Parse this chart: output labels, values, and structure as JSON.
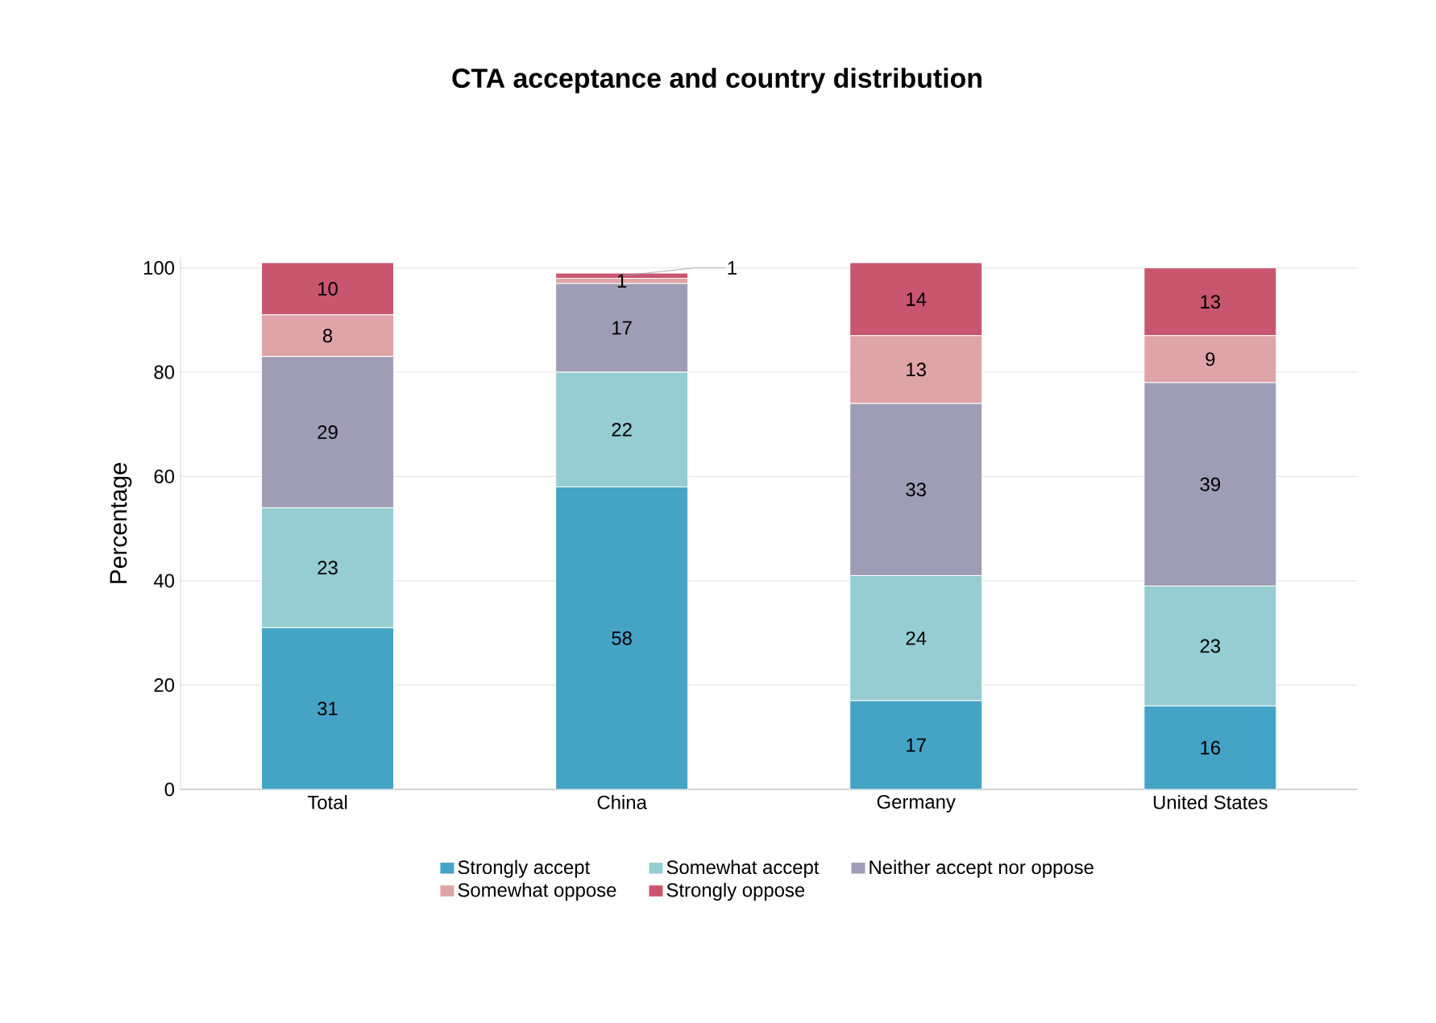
{
  "chart_data": {
    "type": "bar",
    "stacked": true,
    "title": "CTA acceptance and country distribution",
    "ylabel": "Percentage",
    "categories": [
      "Total",
      "China",
      "Germany",
      "United States"
    ],
    "series": [
      {
        "name": "Strongly accept",
        "color": "#45a3c6",
        "values": [
          31,
          58,
          17,
          16
        ]
      },
      {
        "name": "Somewhat accept",
        "color": "#95cdd2",
        "values": [
          23,
          22,
          24,
          23
        ]
      },
      {
        "name": "Neither accept nor oppose",
        "color": "#9e9db5",
        "values": [
          29,
          17,
          33,
          39
        ]
      },
      {
        "name": "Somewhat oppose",
        "color": "#dfa4a7",
        "values": [
          8,
          1,
          13,
          9
        ]
      },
      {
        "name": "Strongly oppose",
        "color": "#c9566f",
        "values": [
          10,
          1,
          14,
          13
        ]
      }
    ],
    "ylim": [
      0,
      102
    ],
    "yticks": [
      0,
      20,
      40,
      60,
      80,
      100
    ],
    "grid": "y",
    "legend": "bottom",
    "data_labels": true
  }
}
